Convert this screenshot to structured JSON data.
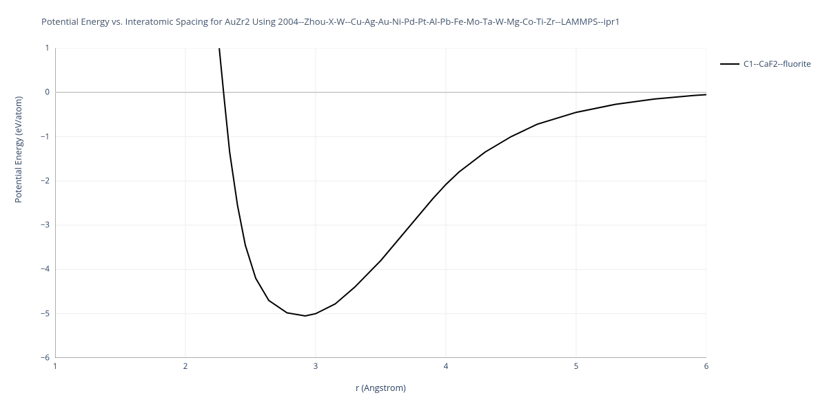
{
  "chart": {
    "type": "line",
    "title": "Potential Energy vs. Interatomic Spacing for AuZr2 Using 2004--Zhou-X-W--Cu-Ag-Au-Ni-Pd-Pt-Al-Pb-Fe-Mo-Ta-W-Mg-Co-Ti-Zr--LAMMPS--ipr1",
    "title_color": "#42536b",
    "title_fontsize": 13,
    "xlabel": "r (Angstrom)",
    "ylabel": "Potential Energy (eV/atom)",
    "label_color": "#2a3f5f",
    "label_fontsize": 12.5,
    "xlim": [
      1,
      6
    ],
    "ylim": [
      -6,
      1
    ],
    "xticks": [
      1,
      2,
      3,
      4,
      5,
      6
    ],
    "yticks": [
      -6,
      -5,
      -4,
      -3,
      -2,
      -1,
      0,
      1
    ],
    "yticklabels": [
      "−6",
      "−5",
      "−4",
      "−3",
      "−2",
      "−1",
      "0",
      "1"
    ],
    "background_color": "#ffffff",
    "grid_color": "#eeeeee",
    "zero_line_color": "#c7c7c7",
    "tick_color": "#5b5b5b",
    "tick_fontsize": 11.5,
    "series": [
      {
        "name": "C1--CaF2--fluorite",
        "color": "#000000",
        "line_width": 2,
        "data": [
          [
            2.26,
            1.0
          ],
          [
            2.3,
            -0.2
          ],
          [
            2.34,
            -1.35
          ],
          [
            2.4,
            -2.55
          ],
          [
            2.46,
            -3.45
          ],
          [
            2.54,
            -4.2
          ],
          [
            2.64,
            -4.7
          ],
          [
            2.78,
            -4.98
          ],
          [
            2.92,
            -5.05
          ],
          [
            3.0,
            -5.0
          ],
          [
            3.15,
            -4.78
          ],
          [
            3.3,
            -4.4
          ],
          [
            3.5,
            -3.8
          ],
          [
            3.7,
            -3.1
          ],
          [
            3.9,
            -2.4
          ],
          [
            4.0,
            -2.08
          ],
          [
            4.1,
            -1.8
          ],
          [
            4.3,
            -1.35
          ],
          [
            4.5,
            -1.0
          ],
          [
            4.7,
            -0.72
          ],
          [
            5.0,
            -0.45
          ],
          [
            5.3,
            -0.27
          ],
          [
            5.6,
            -0.15
          ],
          [
            5.9,
            -0.07
          ],
          [
            6.0,
            -0.05
          ]
        ]
      }
    ],
    "legend": {
      "position": "right",
      "fontsize": 12
    }
  }
}
